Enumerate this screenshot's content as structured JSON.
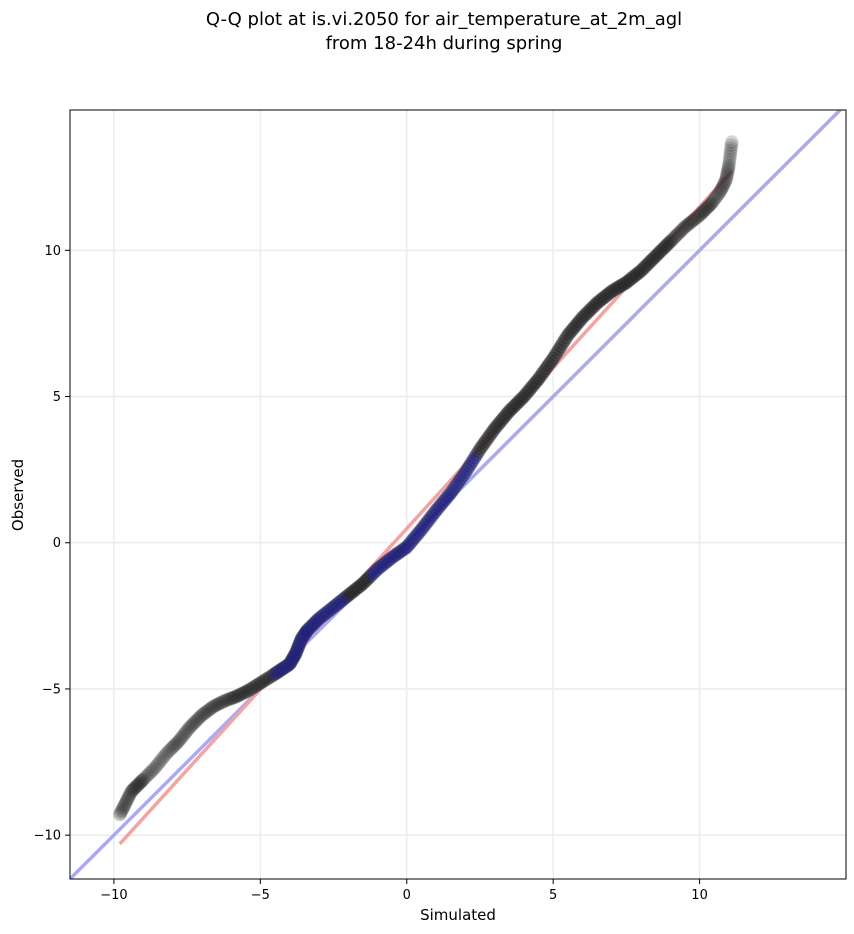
{
  "chart_data": {
    "type": "scatter",
    "title_lines": [
      "Q-Q plot at is.vi.2050 for air_temperature_at_2m_agl",
      "from 18-24h during spring"
    ],
    "xlabel": "Simulated",
    "ylabel": "Observed",
    "xlim": [
      -11.5,
      15.0
    ],
    "ylim": [
      -11.5,
      14.8
    ],
    "xticks": [
      -10,
      -5,
      0,
      5,
      10
    ],
    "yticks": [
      -10,
      -5,
      0,
      5,
      10
    ],
    "xtick_labels": [
      "−10",
      "−5",
      "0",
      "5",
      "10"
    ],
    "ytick_labels": [
      "−10",
      "−5",
      "0",
      "5",
      "10"
    ],
    "grid": true,
    "quantile_curve": {
      "x": [
        -9.8,
        -9.6,
        -9.4,
        -9.2,
        -9.0,
        -8.6,
        -8.2,
        -7.8,
        -7.4,
        -7.0,
        -6.6,
        -6.2,
        -5.8,
        -5.4,
        -5.0,
        -4.6,
        -4.3,
        -4.0,
        -3.8,
        -3.6,
        -3.4,
        -3.0,
        -2.5,
        -2.0,
        -1.5,
        -1.0,
        -0.5,
        0.0,
        0.5,
        1.0,
        1.5,
        2.0,
        2.5,
        3.0,
        3.5,
        4.0,
        4.5,
        5.0,
        5.5,
        6.0,
        6.5,
        7.0,
        7.5,
        8.0,
        8.5,
        9.0,
        9.5,
        10.0,
        10.4,
        10.7,
        10.9,
        11.0,
        11.1
      ],
      "y": [
        -9.3,
        -8.9,
        -8.5,
        -8.3,
        -8.1,
        -7.7,
        -7.2,
        -6.8,
        -6.3,
        -5.9,
        -5.6,
        -5.4,
        -5.25,
        -5.05,
        -4.8,
        -4.55,
        -4.35,
        -4.15,
        -3.8,
        -3.3,
        -3.0,
        -2.6,
        -2.2,
        -1.8,
        -1.4,
        -0.9,
        -0.5,
        -0.15,
        0.45,
        1.1,
        1.7,
        2.4,
        3.2,
        3.9,
        4.5,
        5.0,
        5.6,
        6.3,
        7.1,
        7.7,
        8.2,
        8.6,
        8.9,
        9.3,
        9.8,
        10.3,
        10.8,
        11.2,
        11.6,
        12.0,
        12.4,
        12.9,
        13.7
      ]
    },
    "lines": [
      {
        "name": "identity",
        "color": "#aaaaf0",
        "x": [
          -11.5,
          15.0
        ],
        "y": [
          -11.5,
          15.0
        ]
      },
      {
        "name": "fit",
        "color": "#f4a3a3",
        "x": [
          -9.8,
          11.1
        ],
        "y": [
          -10.3,
          12.7
        ]
      }
    ],
    "colors": {
      "points_low_density": "#b8b8b8",
      "points_high_density": "#000000",
      "points_mid_blue": "#1a1a80",
      "axes": "#000000",
      "grid": "#ececec"
    }
  }
}
